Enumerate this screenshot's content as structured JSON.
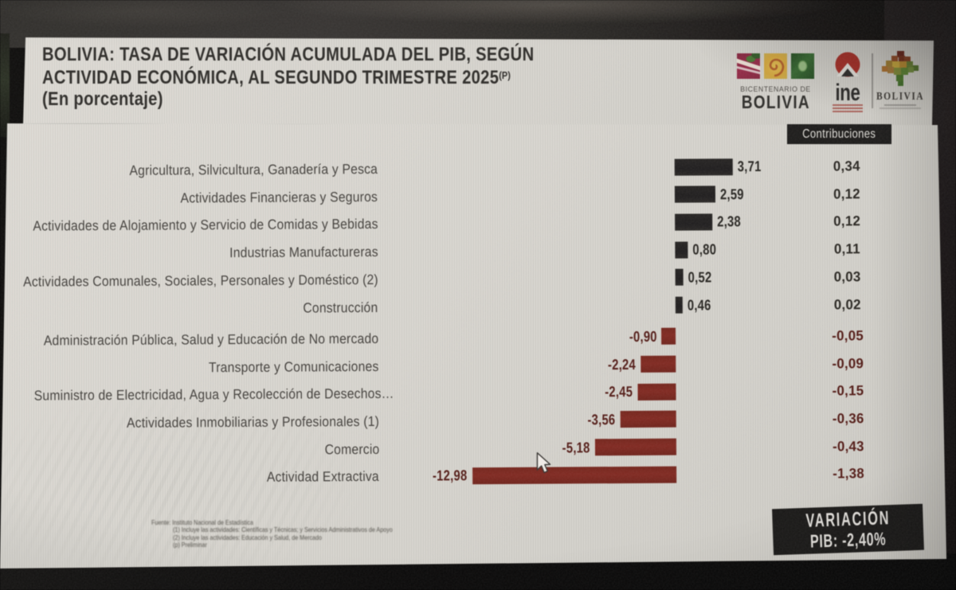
{
  "header": {
    "title_line1": "BOLIVIA: TASA DE VARIACIÓN ACUMULADA DEL PIB, SEGÚN",
    "title_line2": "ACTIVIDAD ECONÓMICA, AL SEGUNDO TRIMESTRE 2025",
    "title_superscript": "(P)",
    "subtitle": "(En porcentaje)"
  },
  "logos": {
    "bicentenario": {
      "top_label": "BICENTENARIO DE",
      "name": "BOLIVIA"
    },
    "ine": {
      "name": "ine"
    },
    "bolivia_brand": {
      "name": "BOLIVIA"
    }
  },
  "chart_data": {
    "type": "bar",
    "orientation": "horizontal",
    "title": "BOLIVIA: TASA DE VARIACIÓN ACUMULADA DEL PIB, SEGÚN ACTIVIDAD ECONÓMICA, AL SEGUNDO TRIMESTRE 2025(P)",
    "unit_label": "(En porcentaje)",
    "contributions_header": "Contribuciones",
    "categories": [
      "Agricultura, Silvicultura, Ganadería y Pesca",
      "Actividades Financieras y Seguros",
      "Actividades de Alojamiento y Servicio de Comidas y Bebidas",
      "Industrias Manufactureras",
      "Actividades Comunales, Sociales, Personales y Doméstico (2)",
      "Construcción",
      "Administración Pública, Salud y Educación de No mercado",
      "Transporte y Comunicaciones",
      "Suministro de Electricidad, Agua y Recolección de Desechos…",
      "Actividades Inmobiliarias y Profesionales (1)",
      "Comercio",
      "Actividad Extractiva"
    ],
    "series": [
      {
        "name": "Tasa de variación acumulada",
        "values": [
          3.71,
          2.59,
          2.38,
          0.8,
          0.52,
          0.46,
          -0.9,
          -2.24,
          -2.45,
          -3.56,
          -5.18,
          -12.98
        ],
        "labels": [
          "3,71",
          "2,59",
          "2,38",
          "0,80",
          "0,52",
          "0,46",
          "-0,90",
          "-2,24",
          "-2,45",
          "-3,56",
          "-5,18",
          "-12,98"
        ]
      },
      {
        "name": "Contribuciones",
        "values": [
          0.34,
          0.12,
          0.12,
          0.11,
          0.03,
          0.02,
          -0.05,
          -0.09,
          -0.15,
          -0.36,
          -0.43,
          -1.38
        ],
        "labels": [
          "0,34",
          "0,12",
          "0,12",
          "0,11",
          "0,03",
          "0,02",
          "-0,05",
          "-0,09",
          "-0,15",
          "-0,36",
          "-0,43",
          "-1,38"
        ]
      }
    ],
    "positive_color": "#1d1b1c",
    "negative_color": "#8d231c"
  },
  "footnotes": [
    "Fuente: Instituto Nacional de Estadística",
    "(1) Incluye las actividades: Científicas y Técnicas; y Servicios Administrativos de Apoyo",
    "(2) Incluye las actividades: Educación y Salud, de Mercado",
    "(p) Preliminar"
  ],
  "variation_box": {
    "line1": "VARIACIÓN",
    "line2": "PIB: -2,40%"
  }
}
